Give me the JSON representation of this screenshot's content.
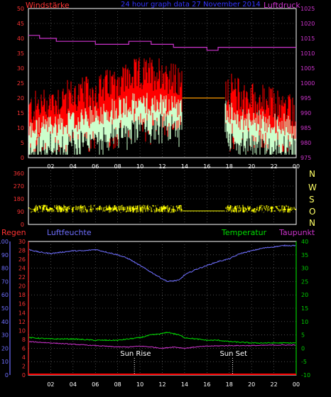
{
  "header": {
    "left_label": "Windstärke",
    "center_label": "24 hour graph data  27 November 2014",
    "right_label": "Luftdruck"
  },
  "compass_labels": [
    "N",
    "W",
    "S",
    "O",
    "N"
  ],
  "bottom_header": {
    "regen_label": "Regen",
    "feuchte_label": "Luftfeuchte",
    "temp_label": "Temperatur",
    "taupunkt_label": "Taupunkt"
  },
  "sun_labels": {
    "rise": "Sun Rise",
    "set": "Sun Set"
  },
  "colors": {
    "gust": "#ff0000",
    "wind": "#ccffcc",
    "pressure": "#cc33cc",
    "winddir": "#ffff00",
    "humidity": "#6f6fff",
    "temperature": "#00dd00",
    "dewpoint": "#cc33cc",
    "rain": "#ff0000",
    "axis": "#ffffff",
    "left_tick": "#ff3333",
    "right_tick": "#cc33cc",
    "green_tick": "#00cc00",
    "blue_tick": "#6f6fff"
  },
  "chart_data": [
    {
      "type": "line",
      "title": "24 hour graph data  27 November 2014",
      "x_tick_labels": [
        "02",
        "04",
        "06",
        "08",
        "10",
        "12",
        "14",
        "16",
        "18",
        "20",
        "22",
        "00"
      ],
      "y_left": {
        "label": "Windstärke",
        "ticks": [
          0,
          5,
          10,
          15,
          20,
          25,
          30,
          35,
          40,
          45,
          50
        ],
        "ylim": [
          0,
          50
        ]
      },
      "y_right": {
        "label": "Luftdruck",
        "ticks": [
          975,
          980,
          985,
          990,
          995,
          1000,
          1005,
          1010,
          1015,
          1020,
          1025
        ],
        "ylim": [
          975,
          1025
        ]
      },
      "gap_hours": [
        13.8,
        17.6
      ],
      "gap_value": 20,
      "series": [
        {
          "name": "Windstärke",
          "axis": "left",
          "style": "bars",
          "color_key": "gust",
          "anchors": [
            [
              0,
              14
            ],
            [
              2,
              17
            ],
            [
              4,
              19
            ],
            [
              6,
              20
            ],
            [
              8,
              24
            ],
            [
              10,
              26
            ],
            [
              12,
              27
            ],
            [
              13.8,
              22
            ],
            [
              17.6,
              22
            ],
            [
              19,
              19
            ],
            [
              21,
              17
            ],
            [
              23,
              15
            ],
            [
              24,
              14
            ]
          ]
        },
        {
          "name": "Windstärke-mean",
          "axis": "left",
          "style": "bars",
          "color_key": "wind",
          "anchors": [
            [
              0,
              9
            ],
            [
              2,
              11
            ],
            [
              4,
              12
            ],
            [
              6,
              14
            ],
            [
              8,
              17
            ],
            [
              10,
              18
            ],
            [
              12,
              18
            ],
            [
              13.8,
              17
            ],
            [
              17.6,
              16
            ],
            [
              19,
              13
            ],
            [
              21,
              12
            ],
            [
              23,
              11
            ],
            [
              24,
              10
            ]
          ]
        },
        {
          "name": "Luftdruck",
          "axis": "right",
          "style": "step",
          "color_key": "pressure",
          "points": [
            [
              0,
              1016
            ],
            [
              1,
              1015
            ],
            [
              2.5,
              1014
            ],
            [
              4,
              1014
            ],
            [
              6,
              1013
            ],
            [
              8,
              1013
            ],
            [
              9,
              1014
            ],
            [
              11,
              1013
            ],
            [
              12,
              1013
            ],
            [
              13,
              1012
            ],
            [
              14,
              1012
            ],
            [
              16,
              1011
            ],
            [
              17,
              1012
            ],
            [
              20,
              1012
            ],
            [
              24,
              1012
            ]
          ]
        }
      ]
    },
    {
      "type": "line",
      "y_left": {
        "label": "Windrichtung",
        "ticks": [
          0,
          90,
          180,
          270,
          360
        ],
        "ylim": [
          0,
          360
        ]
      },
      "y_right_labels": [
        "N",
        "W",
        "S",
        "O",
        "N"
      ],
      "gap_hours": [
        13.8,
        17.6
      ],
      "gap_value": 95,
      "series": [
        {
          "name": "Windrichtung",
          "axis": "left",
          "style": "noise",
          "color_key": "winddir",
          "mean": 110,
          "spread": 28
        }
      ]
    },
    {
      "type": "line",
      "y_left_outer": {
        "label": "Luftfeuchte",
        "ticks": [
          0,
          10,
          20,
          30,
          40,
          50,
          60,
          70,
          80,
          90,
          100
        ],
        "ylim": [
          0,
          100
        ]
      },
      "y_left_inner": {
        "label": "Regen",
        "ticks": [
          0,
          2,
          4,
          6,
          8,
          10,
          12,
          14,
          16,
          18,
          20,
          22,
          24,
          26,
          28,
          30
        ],
        "ylim": [
          0,
          30
        ]
      },
      "y_right": {
        "label": "Temperatur",
        "ticks": [
          -10,
          -5,
          0,
          5,
          10,
          15,
          20,
          25,
          30,
          35,
          40
        ],
        "ylim": [
          -10,
          40
        ]
      },
      "x_tick_labels": [
        "02",
        "04",
        "06",
        "08",
        "10",
        "12",
        "14",
        "16",
        "18",
        "20",
        "22",
        "00"
      ],
      "sun_rise_hour": 9.5,
      "sun_set_hour": 18.3,
      "series": [
        {
          "name": "Luftfeuchte",
          "axis": "outer",
          "color_key": "humidity",
          "points": [
            [
              0,
              94
            ],
            [
              1,
              92
            ],
            [
              2,
              91
            ],
            [
              3,
              92
            ],
            [
              4,
              93
            ],
            [
              5,
              93
            ],
            [
              6,
              94
            ],
            [
              7,
              92
            ],
            [
              8,
              90
            ],
            [
              9,
              87
            ],
            [
              10,
              82
            ],
            [
              11,
              77
            ],
            [
              12,
              72
            ],
            [
              12.5,
              70
            ],
            [
              13.5,
              71
            ],
            [
              14,
              75
            ],
            [
              15,
              79
            ],
            [
              16,
              82
            ],
            [
              17,
              85
            ],
            [
              18,
              87
            ],
            [
              19,
              91
            ],
            [
              20,
              93
            ],
            [
              21,
              95
            ],
            [
              22,
              96
            ],
            [
              23,
              97
            ],
            [
              24,
              97
            ]
          ]
        },
        {
          "name": "Temperatur",
          "axis": "right",
          "color_key": "temperature",
          "points": [
            [
              0,
              4
            ],
            [
              2,
              3.5
            ],
            [
              4,
              3.5
            ],
            [
              6,
              3
            ],
            [
              8,
              3
            ],
            [
              9,
              3.5
            ],
            [
              10,
              4
            ],
            [
              11,
              5
            ],
            [
              12,
              5.5
            ],
            [
              12.5,
              6
            ],
            [
              13.5,
              5
            ],
            [
              14,
              4
            ],
            [
              15,
              3.5
            ],
            [
              16,
              3
            ],
            [
              17,
              3
            ],
            [
              18,
              2.5
            ],
            [
              20,
              2
            ],
            [
              22,
              2
            ],
            [
              24,
              2
            ]
          ]
        },
        {
          "name": "Taupunkt",
          "axis": "right",
          "color_key": "dewpoint",
          "points": [
            [
              0,
              2.5
            ],
            [
              2,
              2
            ],
            [
              4,
              1.5
            ],
            [
              6,
              1
            ],
            [
              8,
              0.5
            ],
            [
              9,
              0.5
            ],
            [
              10,
              0.8
            ],
            [
              11,
              0.5
            ],
            [
              12,
              0
            ],
            [
              13,
              0.5
            ],
            [
              14,
              0
            ],
            [
              15,
              0.5
            ],
            [
              16,
              0.8
            ],
            [
              18,
              1
            ],
            [
              20,
              1
            ],
            [
              22,
              1.2
            ],
            [
              24,
              1.2
            ]
          ]
        },
        {
          "name": "Regen",
          "axis": "inner",
          "color_key": "rain",
          "points": [
            [
              0,
              0
            ],
            [
              24,
              0
            ]
          ]
        }
      ]
    }
  ]
}
